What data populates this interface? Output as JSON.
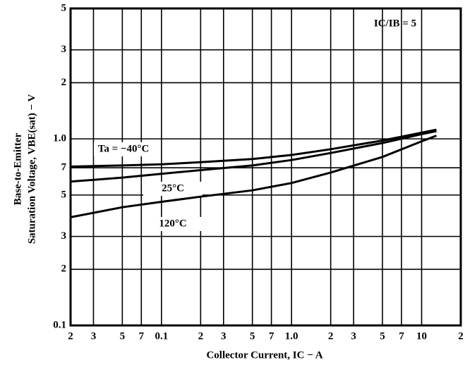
{
  "chart_data": {
    "type": "line",
    "x_scale": "log",
    "y_scale": "log",
    "grid": true,
    "annotation": "IC/IB = 5",
    "xlabel": "Collector Current, IC − A",
    "ylabel": [
      "Base-to-Emitter",
      "Saturation Voltage, VBE(sat) − V"
    ],
    "x": [
      0.02,
      0.05,
      0.1,
      0.2,
      0.5,
      1,
      2,
      5,
      10,
      13
    ],
    "series": [
      {
        "name": "Ta = −40°C",
        "color": "#000000",
        "values": [
          0.71,
          0.72,
          0.73,
          0.75,
          0.78,
          0.82,
          0.88,
          0.98,
          1.08,
          1.12
        ]
      },
      {
        "name": "25°C",
        "color": "#000000",
        "values": [
          0.59,
          0.62,
          0.65,
          0.68,
          0.72,
          0.77,
          0.84,
          0.95,
          1.06,
          1.1
        ]
      },
      {
        "name": "120°C",
        "color": "#000000",
        "values": [
          0.38,
          0.43,
          0.46,
          0.49,
          0.53,
          0.58,
          0.66,
          0.8,
          0.97,
          1.04
        ]
      }
    ],
    "xlim": [
      0.02,
      20
    ],
    "ylim": [
      0.1,
      5
    ],
    "xticks": [
      {
        "value": 0.02,
        "label": "2"
      },
      {
        "value": 0.03,
        "label": "3"
      },
      {
        "value": 0.05,
        "label": "5"
      },
      {
        "value": 0.07,
        "label": "7"
      },
      0.1,
      {
        "value": 0.2,
        "label": "2"
      },
      {
        "value": 0.3,
        "label": "3"
      },
      {
        "value": 0.5,
        "label": "5"
      },
      {
        "value": 0.7,
        "label": "7"
      },
      {
        "value": 1,
        "label": "1.0"
      },
      2,
      3,
      5,
      7,
      10,
      {
        "value": 20,
        "label": "2"
      }
    ],
    "yticks": [
      0.1,
      {
        "value": 0.2,
        "label": "2"
      },
      {
        "value": 0.3,
        "label": "3"
      },
      {
        "value": 0.5,
        "label": "5"
      },
      {
        "value": 0.7,
        "label": "7"
      },
      {
        "value": 1,
        "label": "1.0"
      },
      2,
      3,
      5
    ]
  }
}
